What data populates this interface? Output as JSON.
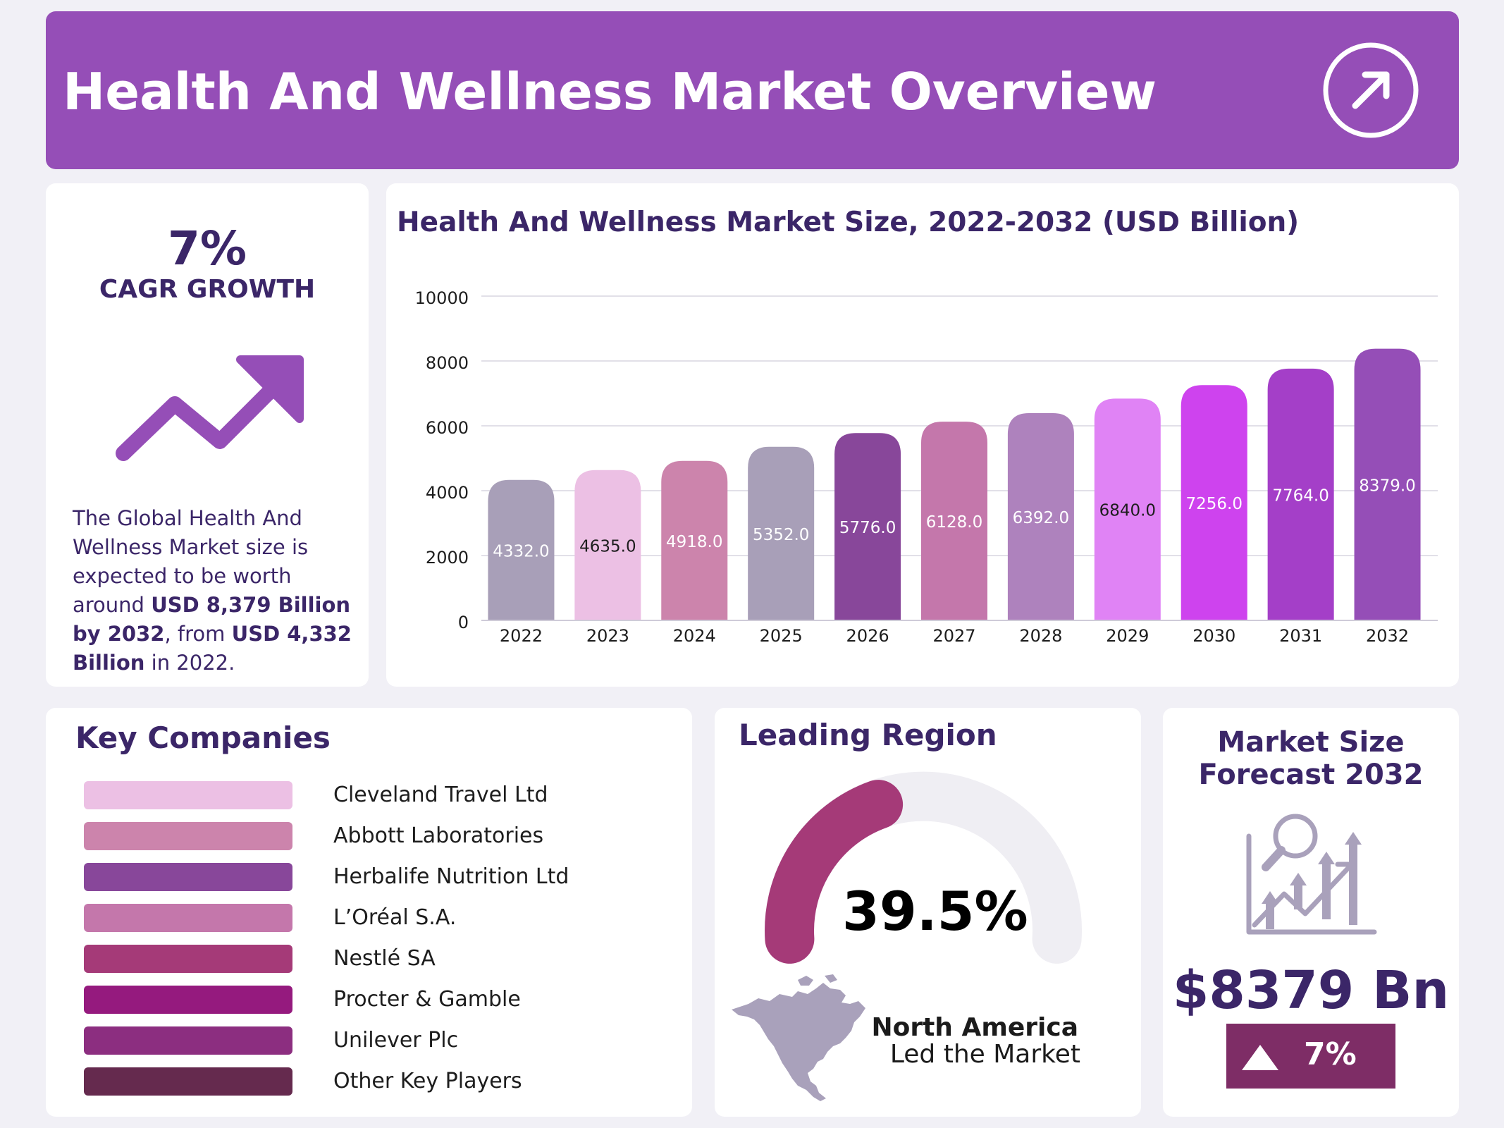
{
  "header": {
    "title": "Health And Wellness Market Overview"
  },
  "cagr": {
    "value": "7%",
    "label": "CAGR GROWTH",
    "desc_1": "The Global Health And Wellness Market size is expected to be worth around ",
    "desc_bold_1": "USD 8,379 Billion by 2032",
    "desc_2": ", from ",
    "desc_bold_2": "USD 4,332 Billion",
    "desc_3": " in 2022."
  },
  "chart_title": "Health And Wellness Market Size, 2022-2032 (USD Billion)",
  "chart_data": {
    "type": "bar",
    "title": "Health And Wellness Market Size, 2022-2032 (USD Billion)",
    "categories": [
      "2022",
      "2023",
      "2024",
      "2025",
      "2026",
      "2027",
      "2028",
      "2029",
      "2030",
      "2031",
      "2032"
    ],
    "values": [
      4332.0,
      4635.0,
      4918.0,
      5352.0,
      5776.0,
      6128.0,
      6392.0,
      6840.0,
      7256.0,
      7764.0,
      8379.0
    ],
    "value_labels": [
      "4332.0",
      "4635.0",
      "4918.0",
      "5352.0",
      "5776.0",
      "6128.0",
      "6392.0",
      "6840.0",
      "7256.0",
      "7764.0",
      "8379.0"
    ],
    "bar_colors": [
      "#a89fb8",
      "#ecc0e4",
      "#cc84ac",
      "#a89fb8",
      "#88479a",
      "#c477ab",
      "#ae82bd",
      "#e083f5",
      "#ce43ee",
      "#a43fc8",
      "#954eb7"
    ],
    "label_colors": [
      "#ffffff",
      "#1d1d1d",
      "#ffffff",
      "#ffffff",
      "#ffffff",
      "#ffffff",
      "#ffffff",
      "#1d1d1d",
      "#ffffff",
      "#ffffff",
      "#ffffff"
    ],
    "ylim": [
      0,
      10000
    ],
    "yticks": [
      "0",
      "2000",
      "4000",
      "6000",
      "8000",
      "10000"
    ],
    "grid": true,
    "xlabel": "",
    "ylabel": ""
  },
  "companies": {
    "title": "Key Companies",
    "items": [
      {
        "name": "Cleveland Travel Ltd",
        "color": "#ecc0e4"
      },
      {
        "name": "Abbott Laboratories",
        "color": "#cc84ac"
      },
      {
        "name": "Herbalife Nutrition Ltd",
        "color": "#88479a"
      },
      {
        "name": "L’Oréal S.A.",
        "color": "#c477ab"
      },
      {
        "name": "Nestlé SA",
        "color": "#a53a78"
      },
      {
        "name": "Procter & Gamble",
        "color": "#951a7e"
      },
      {
        "name": "Unilever Plc",
        "color": "#8c2e80"
      },
      {
        "name": "Other Key Players",
        "color": "#652a4e"
      }
    ]
  },
  "region": {
    "title": "Leading Region",
    "share": 39.5,
    "share_label": "39.5%",
    "name": "North America",
    "subtitle": "Led the Market",
    "gauge_color": "#a53a78",
    "gauge_track_color": "#efeef3",
    "map_icon": "north-america-map-icon"
  },
  "forecast": {
    "title": "Market Size Forecast 2032",
    "value": "$8379 Bn",
    "growth": "7%",
    "icon": "growth-chart-magnifier-icon",
    "badge_color": "#7e2d66"
  }
}
